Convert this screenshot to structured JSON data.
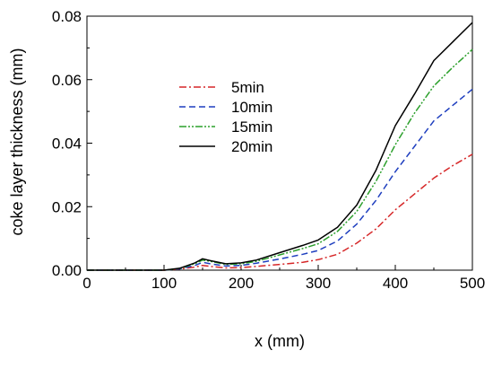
{
  "chart_data": {
    "type": "line",
    "title": "",
    "xlabel": "x (mm)",
    "ylabel": "coke layer thickness (mm)",
    "xlim": [
      0,
      500
    ],
    "ylim": [
      0,
      0.08
    ],
    "x_ticks": [
      0,
      100,
      200,
      300,
      400,
      500
    ],
    "y_ticks": [
      0.0,
      0.02,
      0.04,
      0.06,
      0.08
    ],
    "x_tick_labels": [
      "0",
      "100",
      "200",
      "300",
      "400",
      "500"
    ],
    "y_tick_labels": [
      "0.00",
      "0.02",
      "0.04",
      "0.06",
      "0.08"
    ],
    "grid": false,
    "legend_position": "upper-left-center",
    "x": [
      0,
      50,
      100,
      120,
      140,
      150,
      160,
      180,
      200,
      220,
      250,
      280,
      300,
      325,
      350,
      375,
      400,
      425,
      450,
      475,
      500
    ],
    "series": [
      {
        "name": "5min",
        "color": "#d62728",
        "dash": "dash-dot",
        "values": [
          0,
          0,
          0,
          0.0003,
          0.001,
          0.0015,
          0.0012,
          0.0007,
          0.0008,
          0.0012,
          0.0018,
          0.0025,
          0.0033,
          0.005,
          0.0085,
          0.013,
          0.019,
          0.024,
          0.029,
          0.033,
          0.0365
        ]
      },
      {
        "name": "10min",
        "color": "#1f3fbf",
        "dash": "dashed",
        "values": [
          0,
          0,
          0,
          0.0004,
          0.0015,
          0.0025,
          0.002,
          0.0013,
          0.0015,
          0.0022,
          0.0035,
          0.005,
          0.0062,
          0.0092,
          0.0145,
          0.022,
          0.031,
          0.039,
          0.047,
          0.052,
          0.057
        ]
      },
      {
        "name": "15min",
        "color": "#2ca02c",
        "dash": "dash-dot-dot",
        "values": [
          0,
          0,
          0,
          0.0005,
          0.002,
          0.0032,
          0.0028,
          0.0018,
          0.002,
          0.0028,
          0.0048,
          0.0068,
          0.0083,
          0.0122,
          0.0185,
          0.028,
          0.0395,
          0.0495,
          0.058,
          0.064,
          0.0695
        ]
      },
      {
        "name": "20min",
        "color": "#000000",
        "dash": "solid",
        "values": [
          0,
          0,
          0,
          0.0006,
          0.0023,
          0.0036,
          0.003,
          0.002,
          0.0023,
          0.0032,
          0.0055,
          0.0078,
          0.0095,
          0.0135,
          0.0205,
          0.0315,
          0.0455,
          0.0555,
          0.066,
          0.072,
          0.078
        ]
      }
    ]
  }
}
